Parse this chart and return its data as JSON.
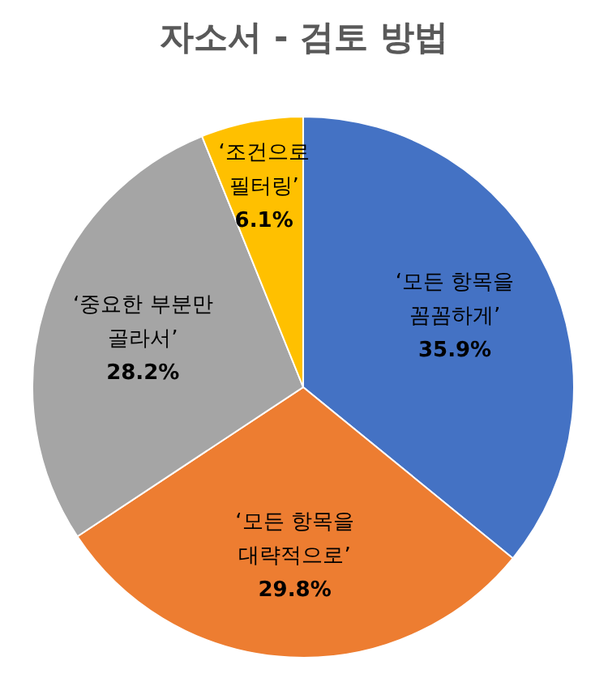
{
  "chart_data": {
    "type": "pie",
    "title": "자소서 - 검토 방법",
    "categories": [
      "‘모든 항목을 꼼꼼하게’",
      "‘모든 항목을 대략적으로’",
      "‘중요한 부분만 골라서’",
      "‘조건으로 필터링’"
    ],
    "values": [
      35.9,
      29.8,
      28.2,
      6.1
    ],
    "value_labels": [
      "35.9%",
      "29.8%",
      "28.2%",
      "6.1%"
    ],
    "colors": [
      "#4472c4",
      "#ed7d31",
      "#a5a5a5",
      "#ffc000"
    ]
  }
}
